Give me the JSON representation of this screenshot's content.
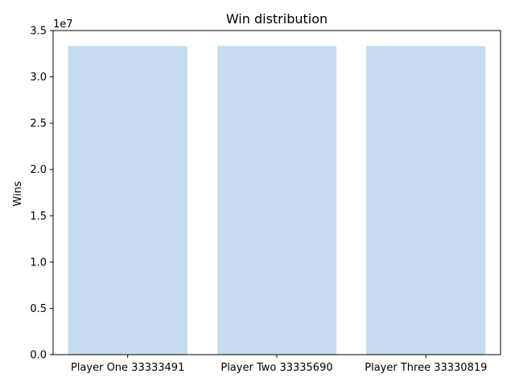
{
  "chart_data": {
    "type": "bar",
    "title": "Win distribution",
    "xlabel": "",
    "ylabel": "Wins",
    "categories": [
      "Player One 33333491",
      "Player Two 33335690",
      "Player Three 33330819"
    ],
    "values": [
      33333491,
      33335690,
      33330819
    ],
    "ylim": [
      0,
      35000000
    ],
    "yticks": [
      "0.0",
      "0.5",
      "1.0",
      "1.5",
      "2.0",
      "2.5",
      "3.0",
      "3.5"
    ],
    "y_offset_label": "1e7",
    "bar_color": "#c6dbed",
    "grid": false,
    "legend": "none"
  }
}
